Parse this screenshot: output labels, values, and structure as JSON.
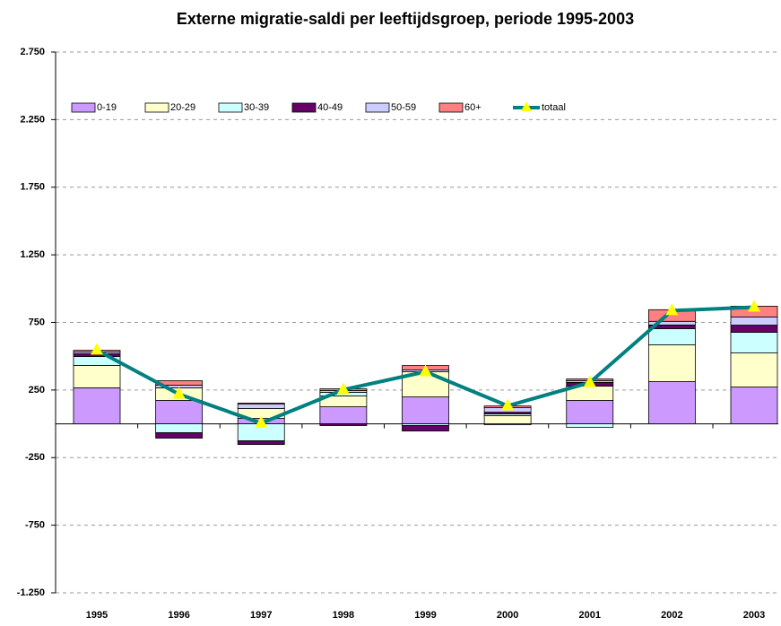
{
  "chart_data": {
    "type": "stacked-bar-line",
    "title": "Externe migratie-saldi per leeftijdsgroep, periode 1995-2003",
    "categories": [
      "1995",
      "1996",
      "1997",
      "1998",
      "1999",
      "2000",
      "2001",
      "2002",
      "2003"
    ],
    "series": [
      {
        "name": "0-19",
        "color": "#cc99ff",
        "values": [
          266,
          173,
          40,
          126,
          199,
          -7,
          173,
          312,
          272
        ]
      },
      {
        "name": "20-29",
        "color": "#ffffcc",
        "values": [
          166,
          93,
          73,
          80,
          186,
          60,
          106,
          272,
          252
        ]
      },
      {
        "name": "30-39",
        "color": "#ccffff",
        "values": [
          66,
          -66,
          -126,
          27,
          -13,
          13,
          -27,
          120,
          153
        ]
      },
      {
        "name": "40-49",
        "color": "#660066",
        "values": [
          20,
          -40,
          -27,
          -13,
          -40,
          13,
          27,
          27,
          53
        ]
      },
      {
        "name": "50-59",
        "color": "#ccccff",
        "values": [
          13,
          20,
          33,
          13,
          13,
          33,
          13,
          27,
          60
        ]
      },
      {
        "name": "60+",
        "color": "#ff8080",
        "values": [
          13,
          33,
          7,
          13,
          33,
          13,
          13,
          86,
          80
        ]
      },
      {
        "name": "totaal",
        "color": "#008080",
        "marker_color": "#ffff00",
        "kind": "line",
        "values": [
          545,
          219,
          5,
          252,
          385,
          133,
          305,
          837,
          863
        ]
      }
    ],
    "ylim": [
      -1250,
      2750
    ],
    "yticks": [
      {
        "value": 2750,
        "label": "2.750"
      },
      {
        "value": 2250,
        "label": "2.250"
      },
      {
        "value": 1750,
        "label": "1.750"
      },
      {
        "value": 1250,
        "label": "1.250"
      },
      750,
      250,
      -250,
      -750,
      {
        "value": -1250,
        "label": "-1.250"
      }
    ],
    "grid": true,
    "legend": "top-left"
  }
}
